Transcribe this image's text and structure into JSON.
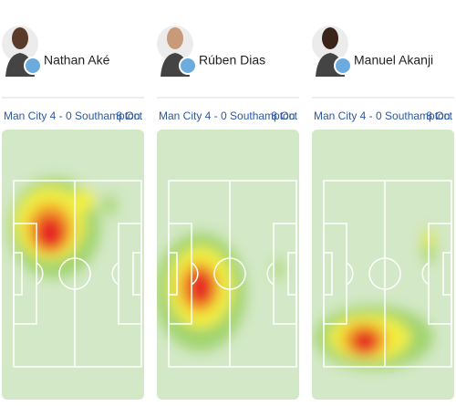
{
  "cards": [
    {
      "player": "Nathan Aké",
      "match": "Man City 4 - 0 Southampton",
      "date": "8 Oct"
    },
    {
      "player": "Rúben Dias",
      "match": "Man City 4 - 0 Southampton",
      "date": "8 Oct"
    },
    {
      "player": "Manuel Akanji",
      "match": "Man City 4 - 0 Southampton",
      "date": "8 Oct"
    }
  ]
}
